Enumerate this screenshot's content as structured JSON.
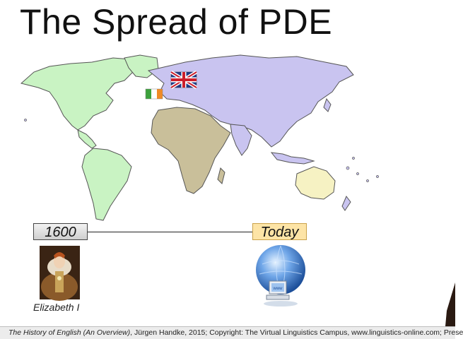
{
  "slide": {
    "title": "The Spread of PDE",
    "timeline": {
      "start_label": "1600",
      "end_label": "Today",
      "start_caption": "Elizabeth I"
    },
    "map": {
      "colors": {
        "americas": "#c9f3c3",
        "eurasia": "#c9c4f0",
        "africa": "#c9bf9a",
        "australia": "#f6f2c3",
        "outline": "#555555"
      },
      "flags": [
        "uk-flag",
        "ireland-flag"
      ]
    },
    "footer": {
      "book_title": "The History of English (An Overview)",
      "rest": ", Jürgen Handke, 2015; Copyright: The Virtual Linguistics Campus, www.linguistics-online.com; Prese"
    }
  }
}
